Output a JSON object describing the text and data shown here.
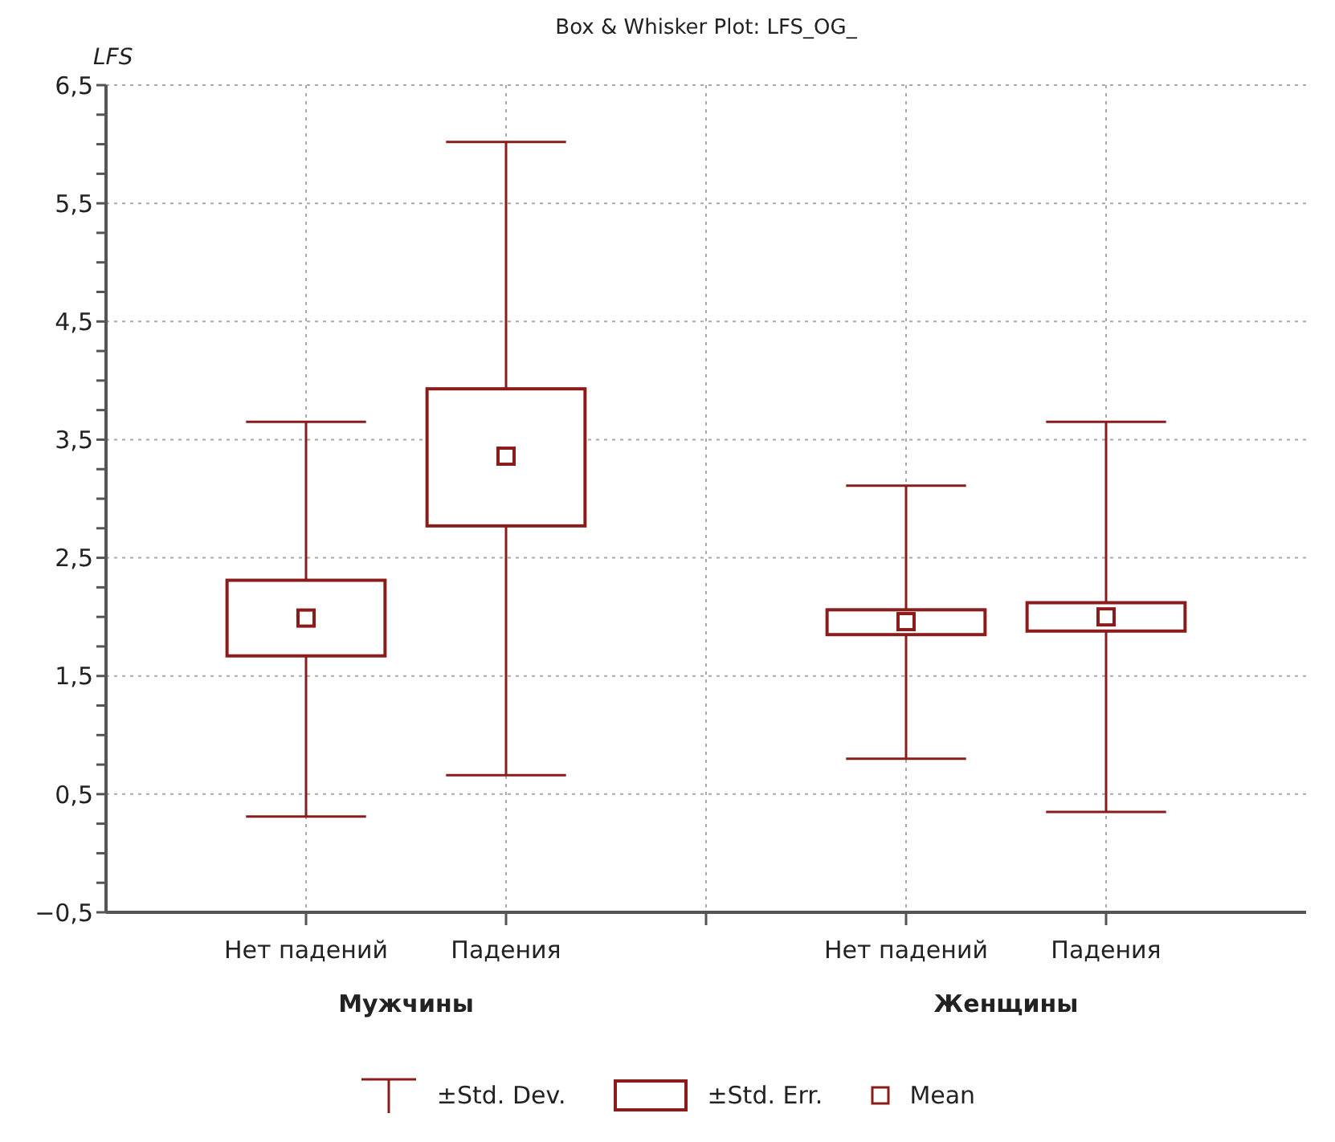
{
  "chart_data": {
    "type": "box",
    "title": "Box & Whisker Plot: LFS_OG_",
    "ylabel": "LFS",
    "categories": [
      "Нет падений",
      "Падения",
      null,
      "Нет падений",
      "Падения"
    ],
    "color": "#8b1c1c",
    "boxes": [
      {
        "low": 0.31,
        "q1": 1.67,
        "q3": 2.31,
        "high": 3.65,
        "mean": 1.99
      },
      {
        "low": 0.66,
        "q1": 2.77,
        "q3": 3.93,
        "high": 6.02,
        "mean": 3.36
      },
      null,
      {
        "low": 0.8,
        "q1": 1.85,
        "q3": 2.06,
        "high": 3.11,
        "mean": 1.96
      },
      {
        "low": 0.35,
        "q1": 1.88,
        "q3": 2.12,
        "high": 3.65,
        "mean": 2.0
      }
    ],
    "ylim": [
      -0.5,
      6.5
    ],
    "yticks": [
      {
        "value": -0.5,
        "label": "−0,5"
      },
      {
        "value": -0.25,
        "label": null
      },
      {
        "value": 0,
        "label": null
      },
      {
        "value": 0.25,
        "label": null
      },
      {
        "value": 0.5,
        "label": "0,5"
      },
      {
        "value": 0.75,
        "label": null
      },
      {
        "value": 1,
        "label": null
      },
      {
        "value": 1.25,
        "label": null
      },
      {
        "value": 1.5,
        "label": "1,5"
      },
      {
        "value": 1.75,
        "label": null
      },
      {
        "value": 2,
        "label": null
      },
      {
        "value": 2.25,
        "label": null
      },
      {
        "value": 2.5,
        "label": "2,5"
      },
      {
        "value": 2.75,
        "label": null
      },
      {
        "value": 3,
        "label": null
      },
      {
        "value": 3.25,
        "label": null
      },
      {
        "value": 3.5,
        "label": "3,5"
      },
      {
        "value": 3.75,
        "label": null
      },
      {
        "value": 4,
        "label": null
      },
      {
        "value": 4.25,
        "label": null
      },
      {
        "value": 4.5,
        "label": "4,5"
      },
      {
        "value": 4.75,
        "label": null
      },
      {
        "value": 5,
        "label": null
      },
      {
        "value": 5.25,
        "label": null
      },
      {
        "value": 5.5,
        "label": "5,5"
      },
      {
        "value": 5.75,
        "label": null
      },
      {
        "value": 6,
        "label": null
      },
      {
        "value": 6.25,
        "label": null
      },
      {
        "value": 6.5,
        "label": "6,5"
      }
    ],
    "grid": true,
    "annotations": [
      "Мужчины",
      "Женщины",
      "±Std. Dev.",
      "±Std. Err.",
      "Mean"
    ]
  }
}
